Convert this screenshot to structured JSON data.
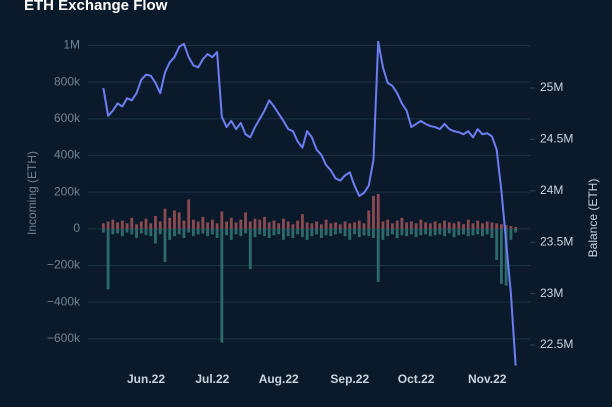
{
  "chart_data": {
    "type": "bar",
    "title": "ETH Exchange Flow",
    "y_label": "Incoming (ETH)",
    "y2_label": "Balance (ETH)",
    "categories": [
      null,
      null,
      null,
      null,
      null,
      null,
      null,
      null,
      null,
      "Jun.22",
      null,
      null,
      null,
      null,
      null,
      null,
      null,
      null,
      null,
      null,
      null,
      null,
      null,
      "Jul.22",
      null,
      null,
      null,
      null,
      null,
      null,
      null,
      null,
      null,
      null,
      null,
      null,
      null,
      "Aug.22",
      null,
      null,
      null,
      null,
      null,
      null,
      null,
      null,
      null,
      null,
      null,
      null,
      null,
      null,
      "Sep.22",
      null,
      null,
      null,
      null,
      null,
      null,
      null,
      null,
      null,
      null,
      null,
      null,
      null,
      "Oct.22",
      null,
      null,
      null,
      null,
      null,
      null,
      null,
      null,
      null,
      null,
      null,
      null,
      null,
      null,
      "Nov.22",
      null,
      null,
      null,
      null,
      null,
      null
    ],
    "series": [
      {
        "color": "#8a4a50",
        "values": [
          30000,
          40000,
          50000,
          35000,
          45000,
          30000,
          60000,
          25000,
          40000,
          55000,
          30000,
          70000,
          40000,
          110000,
          60000,
          100000,
          90000,
          45000,
          160000,
          50000,
          40000,
          65000,
          35000,
          50000,
          30000,
          95000,
          40000,
          60000,
          35000,
          50000,
          90000,
          40000,
          55000,
          50000,
          65000,
          35000,
          45000,
          30000,
          55000,
          40000,
          25000,
          45000,
          80000,
          35000,
          30000,
          40000,
          25000,
          50000,
          30000,
          35000,
          25000,
          40000,
          30000,
          35000,
          45000,
          30000,
          100000,
          180000,
          190000,
          40000,
          50000,
          30000,
          45000,
          60000,
          35000,
          40000,
          30000,
          50000,
          35000,
          30000,
          40000,
          30000,
          45000,
          35000,
          30000,
          40000,
          25000,
          50000,
          30000,
          45000,
          30000,
          40000,
          35000,
          30000,
          25000,
          20000,
          15000,
          10000
        ]
      },
      {
        "color": "#2d6a6c",
        "values": [
          -20000,
          -330000,
          -30000,
          -25000,
          -40000,
          -20000,
          -30000,
          -50000,
          -25000,
          -35000,
          -40000,
          -80000,
          -30000,
          -180000,
          -60000,
          -40000,
          -30000,
          -50000,
          -20000,
          -40000,
          -30000,
          -25000,
          -40000,
          -30000,
          -50000,
          -620000,
          -35000,
          -60000,
          -30000,
          -40000,
          -25000,
          -220000,
          -45000,
          -30000,
          -40000,
          -50000,
          -35000,
          -30000,
          -60000,
          -40000,
          -50000,
          -30000,
          -45000,
          -60000,
          -40000,
          -30000,
          -50000,
          -35000,
          -40000,
          -30000,
          -25000,
          -40000,
          -60000,
          -30000,
          -45000,
          -35000,
          -40000,
          -50000,
          -290000,
          -60000,
          -40000,
          -30000,
          -50000,
          -35000,
          -40000,
          -30000,
          -45000,
          -35000,
          -30000,
          -40000,
          -35000,
          -30000,
          -40000,
          -25000,
          -45000,
          -35000,
          -30000,
          -40000,
          -35000,
          -30000,
          -40000,
          -30000,
          -50000,
          -170000,
          -300000,
          -310000,
          -60000,
          -20000
        ]
      },
      {
        "type": "line",
        "axis": "y2",
        "color": "#6b7ef2",
        "values": [
          25000000,
          24730000,
          24780000,
          24850000,
          24820000,
          24900000,
          24880000,
          24950000,
          25080000,
          25130000,
          25120000,
          25050000,
          24950000,
          25150000,
          25250000,
          25300000,
          25400000,
          25430000,
          25300000,
          25220000,
          25200000,
          25280000,
          25330000,
          25300000,
          25350000,
          24720000,
          24620000,
          24680000,
          24600000,
          24660000,
          24550000,
          24520000,
          24620000,
          24700000,
          24780000,
          24880000,
          24820000,
          24750000,
          24680000,
          24600000,
          24580000,
          24480000,
          24420000,
          24580000,
          24520000,
          24400000,
          24350000,
          24250000,
          24200000,
          24120000,
          24100000,
          24150000,
          24180000,
          24050000,
          23950000,
          23980000,
          24050000,
          24300000,
          25450000,
          25200000,
          25050000,
          25020000,
          24950000,
          24850000,
          24780000,
          24620000,
          24650000,
          24680000,
          24650000,
          24630000,
          24620000,
          24600000,
          24650000,
          24600000,
          24580000,
          24570000,
          24550000,
          24580000,
          24520000,
          24600000,
          24550000,
          24560000,
          24530000,
          24400000,
          24000000,
          23500000,
          23000000,
          22300000
        ]
      }
    ],
    "ylim": [
      -770000,
      1030000
    ],
    "yticks": [
      {
        "value": 1000000,
        "label": "1M"
      },
      {
        "value": 800000,
        "label": "800k"
      },
      {
        "value": 600000,
        "label": "600k"
      },
      {
        "value": 400000,
        "label": "400k"
      },
      {
        "value": 200000,
        "label": "200k"
      },
      0,
      {
        "value": -200000,
        "label": "−200k"
      },
      {
        "value": -400000,
        "label": "−400k"
      },
      {
        "value": -600000,
        "label": "−600k"
      }
    ],
    "y2lim": [
      22257000,
      25467000
    ],
    "y2ticks": [
      {
        "value": 25000000,
        "label": "25M"
      },
      {
        "value": 24500000,
        "label": "24.5M"
      },
      {
        "value": 24000000,
        "label": "24M"
      },
      {
        "value": 23500000,
        "label": "23.5M"
      },
      {
        "value": 23000000,
        "label": "23M"
      },
      {
        "value": 22500000,
        "label": "22.5M"
      }
    ],
    "grid": true
  }
}
